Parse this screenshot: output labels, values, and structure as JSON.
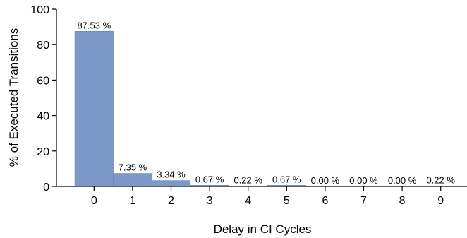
{
  "chart_data": {
    "type": "bar",
    "xlabel": "Delay in CI Cycles",
    "ylabel": "% of Executed Transitions",
    "ylim": [
      0,
      100
    ],
    "yticks": [
      0,
      20,
      40,
      60,
      80,
      100
    ],
    "categories": [
      "0",
      "1",
      "2",
      "3",
      "4",
      "5",
      "6",
      "7",
      "8",
      "9"
    ],
    "values": [
      87.53,
      7.35,
      3.34,
      0.67,
      0.22,
      0.67,
      0.0,
      0.0,
      0.0,
      0.22
    ],
    "data_labels": [
      "87.53 %",
      "7.35 %",
      "3.34 %",
      "0.67 %",
      "0.22 %",
      "0.67 %",
      "0.00 %",
      "0.00 %",
      "0.00 %",
      "0.22 %"
    ],
    "bar_color": "#7b98c8",
    "bar_edge_color": "#6a87b8",
    "grid": false,
    "legend": "none"
  }
}
